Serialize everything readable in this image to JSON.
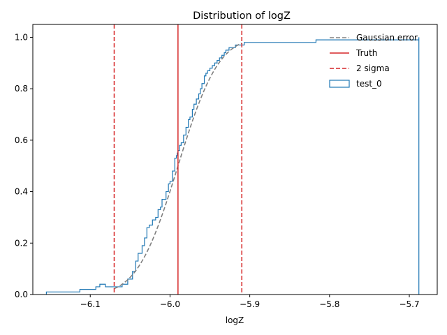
{
  "chart_data": {
    "type": "line",
    "title": "Distribution of logZ",
    "xlabel": "logZ",
    "ylabel": "",
    "xlim": [
      -6.172,
      -5.665
    ],
    "ylim": [
      0,
      1.05
    ],
    "x_ticks": [
      -6.1,
      -6.0,
      -5.9,
      -5.8,
      -5.7
    ],
    "x_tick_labels": [
      "−6.1",
      "−6.0",
      "−5.9",
      "−5.8",
      "−5.7"
    ],
    "y_ticks": [
      0.0,
      0.2,
      0.4,
      0.6,
      0.8,
      1.0
    ],
    "y_tick_labels": [
      "0.0",
      "0.2",
      "0.4",
      "0.6",
      "0.8",
      "1.0"
    ],
    "grid": false,
    "legend_position": "top-right",
    "legend": [
      {
        "label": "Gaussian error",
        "style": "dashed",
        "color": "#808080"
      },
      {
        "label": "Truth",
        "style": "solid",
        "color": "#d62728"
      },
      {
        "label": "2 sigma",
        "style": "dashed",
        "color": "#d62728"
      },
      {
        "label": "test_0",
        "style": "box",
        "color": "#1f77b4"
      }
    ],
    "series": [
      {
        "name": "test_0",
        "kind": "cumulative-step-histogram",
        "color": "#1f77b4",
        "x": [
          -6.155,
          -6.113,
          -6.093,
          -6.088,
          -6.081,
          -6.06,
          -6.053,
          -6.047,
          -6.043,
          -6.04,
          -6.035,
          -6.032,
          -6.029,
          -6.026,
          -6.022,
          -6.018,
          -6.015,
          -6.012,
          -6.01,
          -6.005,
          -6.002,
          -6.0,
          -5.997,
          -5.994,
          -5.992,
          -5.991,
          -5.99,
          -5.988,
          -5.986,
          -5.983,
          -5.98,
          -5.977,
          -5.975,
          -5.972,
          -5.97,
          -5.967,
          -5.964,
          -5.962,
          -5.96,
          -5.957,
          -5.955,
          -5.953,
          -5.95,
          -5.947,
          -5.944,
          -5.941,
          -5.938,
          -5.935,
          -5.932,
          -5.93,
          -5.926,
          -5.922,
          -5.918,
          -5.913,
          -5.91,
          -5.907,
          -5.902,
          -5.894,
          -5.874,
          -5.817,
          -5.688
        ],
        "y": [
          0.01,
          0.02,
          0.03,
          0.04,
          0.03,
          0.04,
          0.06,
          0.09,
          0.13,
          0.16,
          0.19,
          0.22,
          0.26,
          0.27,
          0.29,
          0.3,
          0.33,
          0.34,
          0.37,
          0.4,
          0.43,
          0.44,
          0.48,
          0.53,
          0.54,
          0.55,
          0.56,
          0.58,
          0.59,
          0.62,
          0.65,
          0.68,
          0.69,
          0.72,
          0.74,
          0.76,
          0.78,
          0.8,
          0.82,
          0.85,
          0.86,
          0.87,
          0.88,
          0.89,
          0.9,
          0.91,
          0.92,
          0.93,
          0.94,
          0.95,
          0.96,
          0.96,
          0.97,
          0.97,
          0.97,
          0.98,
          0.98,
          0.98,
          0.98,
          0.99,
          1.0
        ],
        "end_x": -5.688
      },
      {
        "name": "Gaussian error",
        "kind": "normal-cdf",
        "color": "#808080",
        "mu": -5.99,
        "sigma": 0.04,
        "x_range": [
          -6.07,
          -5.91
        ]
      }
    ],
    "vlines": [
      {
        "name": "Truth",
        "x": -5.99,
        "color": "#d62728",
        "style": "solid"
      },
      {
        "name": "2 sigma",
        "x": -6.07,
        "color": "#d62728",
        "style": "dashed"
      },
      {
        "name": "2 sigma",
        "x": -5.91,
        "color": "#d62728",
        "style": "dashed"
      }
    ]
  }
}
